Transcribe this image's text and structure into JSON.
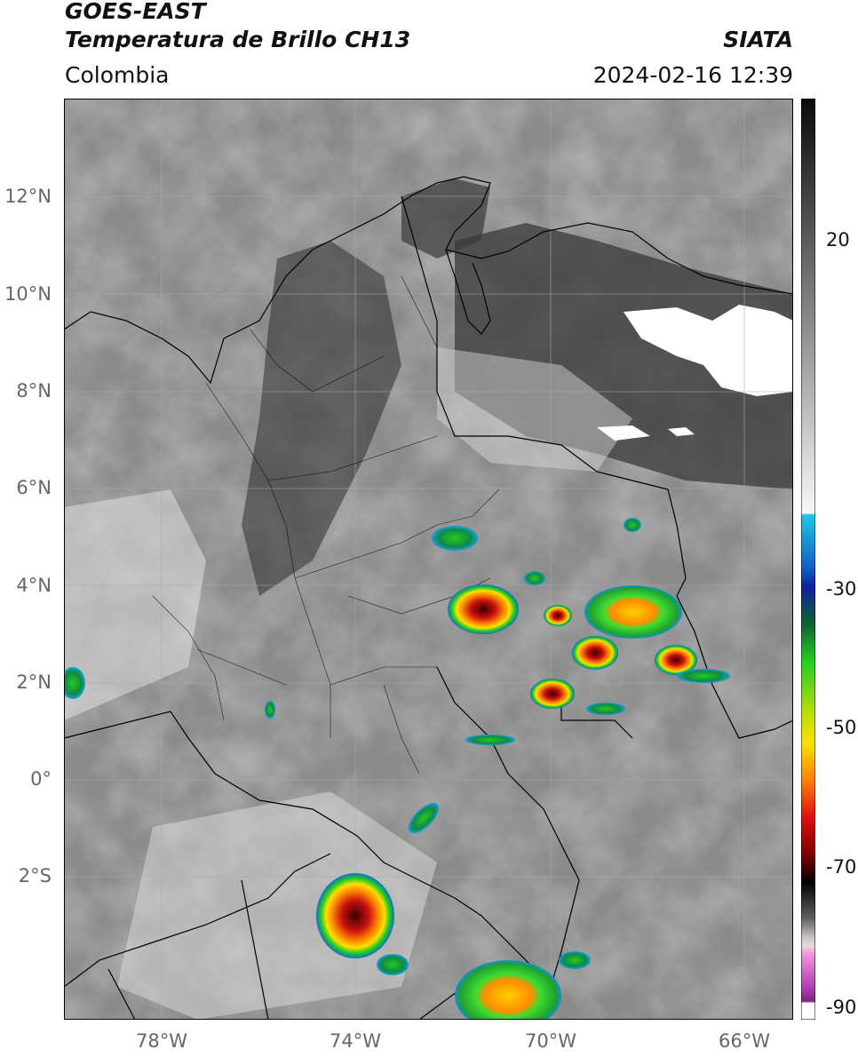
{
  "header": {
    "satellite": "GOES-EAST",
    "product": "Temperatura de Brillo CH13",
    "region": "Colombia",
    "agency": "SIATA",
    "datetime": "2024-02-16 12:39"
  },
  "map": {
    "lat_labels": [
      "12°N",
      "10°N",
      "8°N",
      "6°N",
      "4°N",
      "2°N",
      "0°",
      "2°S"
    ],
    "lon_labels": [
      "78°W",
      "74°W",
      "70°W",
      "66°W"
    ]
  },
  "colorbar": {
    "labels": [
      "20",
      "-30",
      "-50",
      "-70",
      "-90"
    ],
    "colors": {
      "warm_top": "#0a0a0a",
      "warm_bottom": "#f8f8f8",
      "cyan": "#1ec8e8",
      "blue": "#1020a0",
      "green": "#22cc22",
      "yellow": "#ffe000",
      "orange": "#ff8000",
      "red": "#e01010",
      "dark_red": "#500000",
      "pink": "#e060c0",
      "purple": "#902090"
    }
  }
}
